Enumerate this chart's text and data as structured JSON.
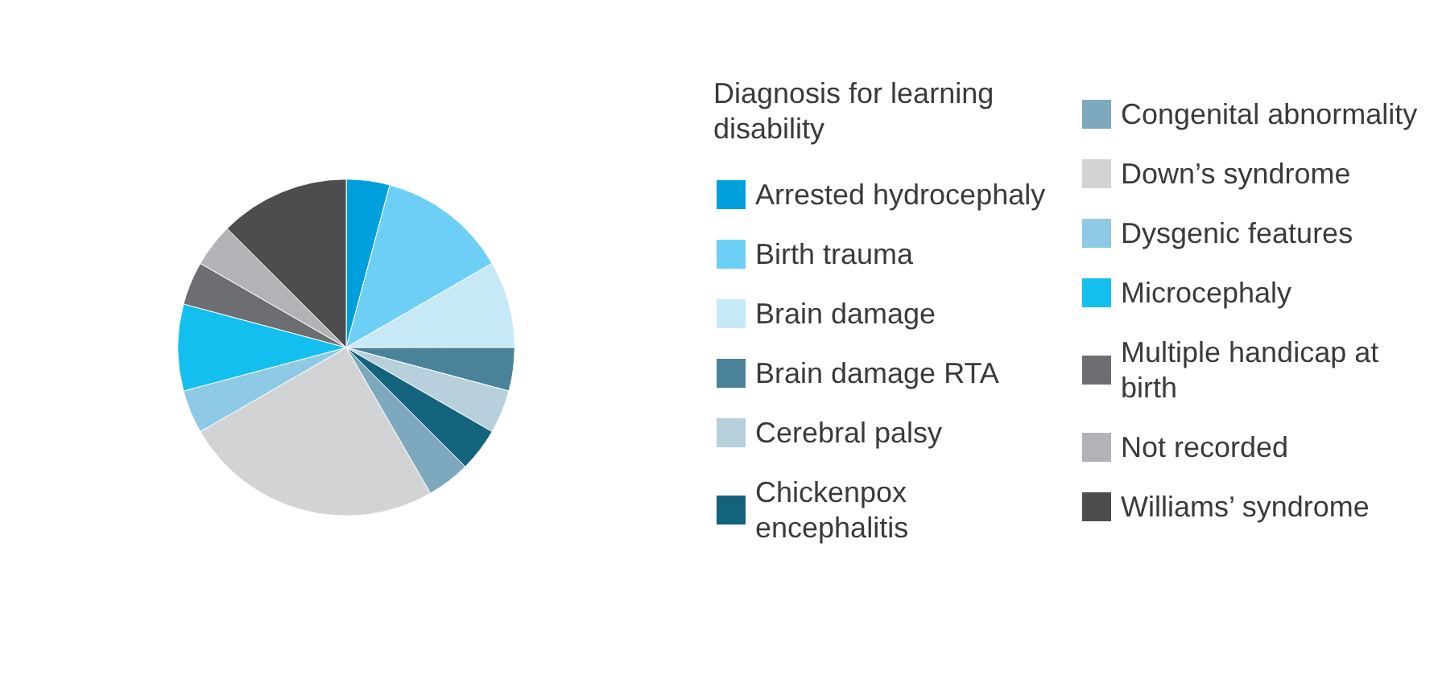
{
  "chart_data": {
    "type": "pie",
    "legend_title": "Diagnosis for learning disability",
    "legend": "right",
    "categories": [
      "Arrested hydrocephaly",
      "Birth trauma",
      "Brain damage",
      "Brain damage RTA",
      "Cerebral palsy",
      "Chickenpox encephalitis",
      "Congenital abnormality",
      "Down’s syndrome",
      "Dysgenic features",
      "Microcephaly",
      "Multiple handicap at birth",
      "Not recorded",
      "Williams’ syndrome"
    ],
    "values": [
      4.17,
      12.5,
      8.33,
      4.17,
      4.17,
      4.17,
      4.17,
      25,
      4.17,
      8.33,
      4.17,
      4.17,
      12.5
    ],
    "colors": [
      "#00a0dc",
      "#6dcff6",
      "#c6e8f7",
      "#4a8399",
      "#b7d0dc",
      "#14637d",
      "#7ea8bd",
      "#d1d3d4",
      "#8ecae6",
      "#12bfef",
      "#6d6e71",
      "#b1b3b6",
      "#4d4d4f"
    ]
  }
}
